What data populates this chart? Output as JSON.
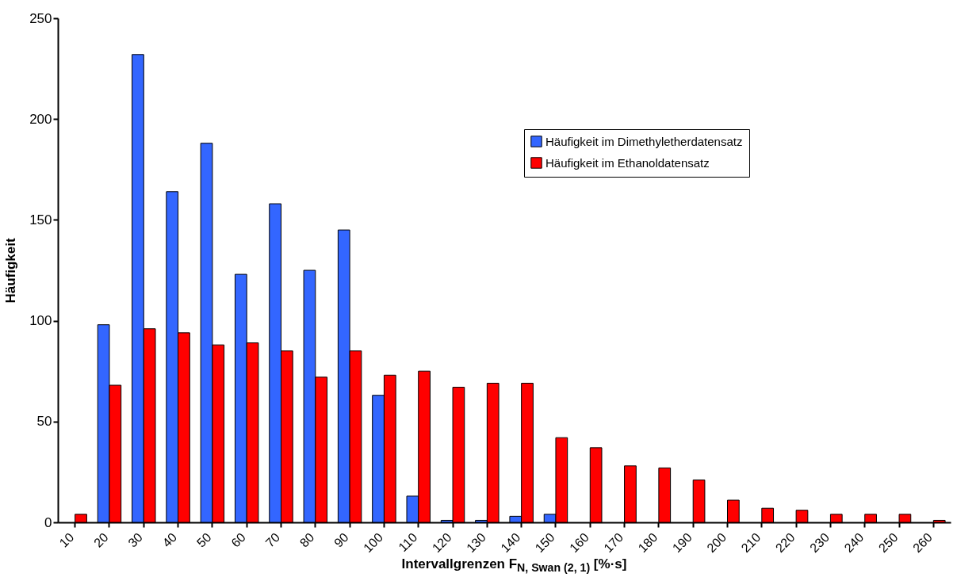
{
  "chart_data": {
    "type": "bar",
    "xlabel": "Intervallgrenzen F$_{N, Swan (2, 1)}$ [%·s]",
    "ylabel": "Häufigkeit",
    "categories": [
      "10",
      "20",
      "30",
      "40",
      "50",
      "60",
      "70",
      "80",
      "90",
      "100",
      "110",
      "120",
      "130",
      "140",
      "150",
      "160",
      "170",
      "180",
      "190",
      "200",
      "210",
      "220",
      "230",
      "240",
      "250",
      "260"
    ],
    "series": [
      {
        "name": "Häufigkeit im Dimethyletherdatensatz",
        "color": "#3366ff",
        "values": [
          null,
          98,
          232,
          164,
          188,
          123,
          158,
          125,
          145,
          63,
          13,
          1,
          1,
          3,
          4,
          null,
          null,
          null,
          null,
          null,
          null,
          null,
          null,
          null,
          null,
          null
        ]
      },
      {
        "name": "Häufigkeit im Ethanoldatensatz",
        "color": "#ff0000",
        "values": [
          4,
          68,
          96,
          94,
          88,
          89,
          85,
          72,
          85,
          73,
          75,
          67,
          69,
          69,
          42,
          37,
          28,
          27,
          21,
          11,
          7,
          6,
          4,
          4,
          4,
          1
        ]
      }
    ],
    "ylim": [
      0,
      250
    ],
    "yticks": [
      0,
      50,
      100,
      150,
      200,
      250
    ],
    "grid": false,
    "legend": "top right"
  }
}
